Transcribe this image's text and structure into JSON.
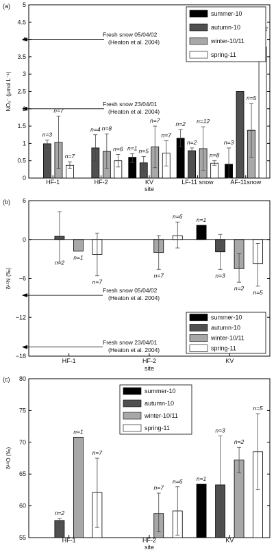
{
  "series_styles": [
    {
      "name": "summer-10",
      "color": "#000000"
    },
    {
      "name": "autumn-10",
      "color": "#505050"
    },
    {
      "name": "winter-10/11",
      "color": "#a8a8a8"
    },
    {
      "name": "spring-11",
      "color": "#ffffff"
    }
  ],
  "chart_data": [
    {
      "panel": "(a)",
      "type": "bar",
      "title": "",
      "xlabel": "site",
      "ylabel": "NO₃⁻ (µmol L⁻¹)",
      "ylim": [
        0,
        5
      ],
      "yticks": [
        "0",
        "0.5",
        "1",
        "1.5",
        "2",
        "2.5",
        "3",
        "3.5",
        "4",
        "4.5",
        "5"
      ],
      "categories": [
        "HF-1",
        "HF-2",
        "KV",
        "LF-11 snow",
        "AF-11snow"
      ],
      "legend_position": "top-right",
      "grid": false,
      "series": [
        {
          "name": "summer-10",
          "values": [
            null,
            null,
            0.6,
            1.15,
            0.4
          ],
          "err_low": [
            null,
            null,
            0.45,
            0.9,
            0.0
          ],
          "err_high": [
            null,
            null,
            0.7,
            1.4,
            0.87
          ],
          "labels": [
            "",
            "",
            "n=1",
            "n=2",
            "n=3"
          ]
        },
        {
          "name": "autumn-10",
          "values": [
            0.99,
            0.87,
            0.44,
            0.79,
            2.5
          ],
          "err_low": [
            0.87,
            0.5,
            0.2,
            0.73,
            null
          ],
          "err_high": [
            1.1,
            1.25,
            0.62,
            0.87,
            null
          ],
          "labels": [
            "n=3",
            "n=4",
            "n=5",
            "n=2",
            ""
          ]
        },
        {
          "name": "winter-10/11",
          "values": [
            1.03,
            0.77,
            0.9,
            0.85,
            1.38
          ],
          "err_low": [
            0.27,
            0.28,
            0.3,
            0.22,
            0.6
          ],
          "err_high": [
            1.79,
            1.27,
            1.5,
            1.48,
            2.15
          ],
          "labels": [
            "n=7",
            "n=8",
            "n=7",
            "n=12",
            "n=5"
          ]
        },
        {
          "name": "spring-11",
          "values": [
            0.37,
            0.5,
            0.72,
            0.43,
            3.78
          ],
          "err_low": [
            0.27,
            0.32,
            0.35,
            0.37,
            3.45
          ],
          "err_high": [
            0.47,
            0.68,
            1.08,
            0.5,
            4.15
          ],
          "labels": [
            "n=7",
            "n=6",
            "n=7",
            "n=8",
            "n=2"
          ]
        }
      ],
      "annotations": [
        {
          "text": "Fresh snow 05/04/02\n(Heaton et al. 2004)",
          "y": 4.0
        },
        {
          "text": "Fresh snow 23/04/01\n(Heaton et al. 2004)",
          "y": 2.0
        }
      ]
    },
    {
      "panel": "(b)",
      "type": "bar",
      "title": "",
      "xlabel": "site",
      "ylabel": "δ¹⁵N (‰)",
      "ylim": [
        -18,
        6
      ],
      "yticks": [
        "−18",
        "−12",
        "−6",
        "0",
        "6"
      ],
      "categories": [
        "HF-1",
        "HF-2",
        "KV"
      ],
      "legend_position": "bottom-right",
      "grid": false,
      "series": [
        {
          "name": "summer-10",
          "values": [
            null,
            null,
            2.2
          ],
          "err_low": [
            null,
            null,
            null
          ],
          "err_high": [
            null,
            null,
            null
          ],
          "labels": [
            "",
            "",
            "n=1"
          ]
        },
        {
          "name": "autumn-10",
          "values": [
            0.5,
            null,
            -1.9
          ],
          "err_low": [
            -3.5,
            null,
            -4.6
          ],
          "err_high": [
            4.3,
            null,
            0.8
          ],
          "labels": [
            "n=2",
            "",
            "n=3"
          ]
        },
        {
          "name": "winter-10/11",
          "values": [
            -1.8,
            -2.0,
            -4.5
          ],
          "err_low": [
            null,
            -4.6,
            -6.6
          ],
          "err_high": [
            null,
            0.6,
            -2.2
          ],
          "labels": [
            "n=1",
            "n=7",
            "n=2"
          ]
        },
        {
          "name": "spring-11",
          "values": [
            -2.3,
            0.6,
            -3.7
          ],
          "err_low": [
            -5.6,
            -1.3,
            -7.2
          ],
          "err_high": [
            1.0,
            2.7,
            -0.6
          ],
          "labels": [
            "n=7",
            "n=6",
            "n=5"
          ]
        }
      ],
      "annotations": [
        {
          "text": "Fresh snow 05/04/02\n(Heaton et al. 2004)",
          "y": -8.6
        },
        {
          "text": "Fresh snow 23/04/01\n(Heaton et al. 2004)",
          "y": -16.6
        }
      ]
    },
    {
      "panel": "(c)",
      "type": "bar",
      "title": "",
      "xlabel": "site",
      "ylabel": "δ¹⁸O (‰)",
      "ylim": [
        55,
        80
      ],
      "yticks": [
        "55",
        "60",
        "65",
        "70",
        "75",
        "80"
      ],
      "categories": [
        "HF-1",
        "HF-2",
        "KV"
      ],
      "legend_position": "top-center",
      "grid": false,
      "series": [
        {
          "name": "summer-10",
          "values": [
            null,
            null,
            63.4
          ],
          "err_low": [
            null,
            null,
            null
          ],
          "err_high": [
            null,
            null,
            null
          ],
          "labels": [
            "",
            "",
            "n=1"
          ]
        },
        {
          "name": "autumn-10",
          "values": [
            57.7,
            null,
            63.3
          ],
          "err_low": [
            57.4,
            null,
            55.2
          ],
          "err_high": [
            58.0,
            null,
            71.0
          ],
          "labels": [
            "n=2",
            "",
            "n=3"
          ]
        },
        {
          "name": "winter-10/11",
          "values": [
            70.8,
            58.8,
            67.2
          ],
          "err_low": [
            null,
            55.9,
            65.2
          ],
          "err_high": [
            null,
            62.0,
            69.2
          ],
          "labels": [
            "n=1",
            "n=7",
            "n=2"
          ]
        },
        {
          "name": "spring-11",
          "values": [
            62.1,
            59.2,
            68.5
          ],
          "err_low": [
            56.6,
            55.4,
            62.6
          ],
          "err_high": [
            67.5,
            63.0,
            74.5
          ],
          "labels": [
            "n=7",
            "n=6",
            "n=5"
          ]
        }
      ],
      "annotations": []
    }
  ]
}
